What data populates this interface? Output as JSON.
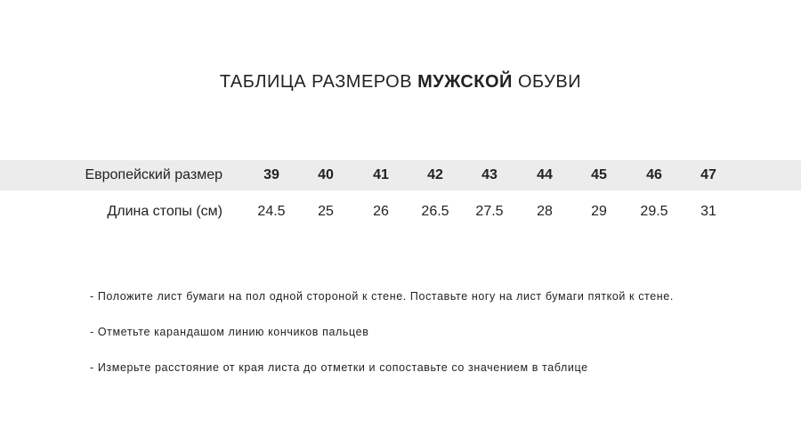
{
  "title": {
    "pre": "ТАБЛИЦА РАЗМЕРОВ ",
    "bold": "МУЖСКОЙ",
    "post": " ОБУВИ"
  },
  "table": {
    "size_label": "Европейский размер",
    "length_label": "Длина стопы (см)",
    "sizes": [
      "39",
      "40",
      "41",
      "42",
      "43",
      "44",
      "45",
      "46",
      "47"
    ],
    "lengths": [
      "24.5",
      "25",
      "26",
      "26.5",
      "27.5",
      "28",
      "29",
      "29.5",
      "31"
    ],
    "header_bg": "#ececec"
  },
  "instructions": [
    "- Положите лист бумаги на пол одной стороной к стене. Поставьте ногу на лист бумаги пяткой к стене.",
    "- Отметьте карандашом линию кончиков пальцев",
    "- Измерьте расстояние от края листа до отметки и сопоставьте со значением в таблице"
  ]
}
